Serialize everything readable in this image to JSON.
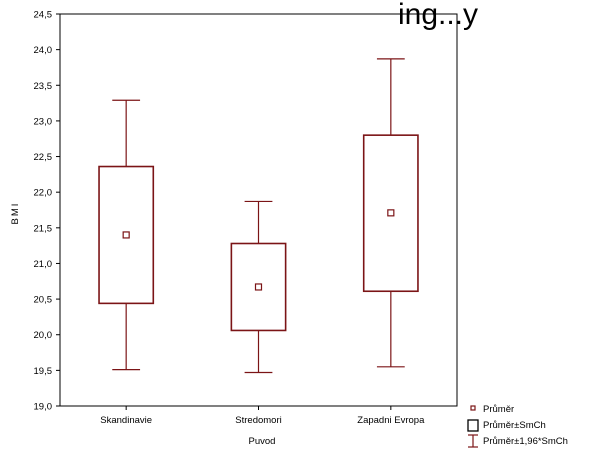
{
  "chart_data": {
    "type": "box",
    "title": "ing...y",
    "xlabel": "Puvod",
    "ylabel": "BMI",
    "ylim": [
      19.0,
      24.5
    ],
    "ytick_step": 0.5,
    "grid": false,
    "legend_position": "bottom-right",
    "categories": [
      "Skandinavie",
      "Stredomori",
      "Zapadni Evropa"
    ],
    "series": [
      {
        "name": "Průměr",
        "values": [
          21.4,
          20.67,
          21.71
        ]
      },
      {
        "name": "Průměr±SmCh",
        "values": [
          [
            20.44,
            22.36
          ],
          [
            20.06,
            21.28
          ],
          [
            20.61,
            22.8
          ]
        ]
      },
      {
        "name": "Průměr±1,96*SmCh",
        "values": [
          [
            19.51,
            23.29
          ],
          [
            19.47,
            21.87
          ],
          [
            19.55,
            23.87
          ]
        ]
      }
    ],
    "colors": {
      "series": "#7b1416",
      "frame": "#000000"
    }
  }
}
